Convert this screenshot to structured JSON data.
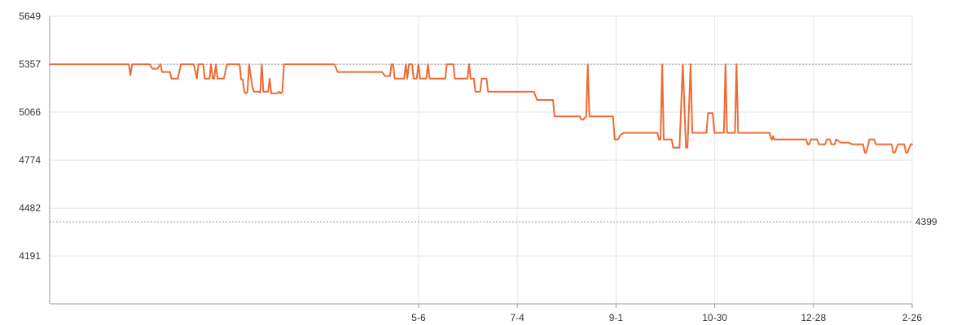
{
  "chart_data": {
    "type": "line",
    "title": "",
    "xlabel": "",
    "ylabel": "",
    "x_ticks": [
      "5-6",
      "7-4",
      "9-1",
      "10-30",
      "12-28",
      "2-26"
    ],
    "y_ticks": [
      "5649",
      "5357",
      "5066",
      "4774",
      "4482",
      "4191"
    ],
    "ylim": [
      3900,
      5649
    ],
    "grid": true,
    "reference_lines": [
      {
        "value": 5357,
        "label": ""
      },
      {
        "value": 4399,
        "label": "4399"
      }
    ],
    "series": [
      {
        "color": "#ee6a33",
        "points": [
          [
            0,
            5357
          ],
          [
            47.6,
            5357
          ],
          [
            48.6,
            5290
          ],
          [
            49.6,
            5357
          ],
          [
            60,
            5357
          ],
          [
            61.9,
            5330
          ],
          [
            64.8,
            5330
          ],
          [
            66.7,
            5357
          ],
          [
            67.6,
            5310
          ],
          [
            72.4,
            5310
          ],
          [
            73.3,
            5270
          ],
          [
            77.1,
            5270
          ],
          [
            79,
            5357
          ],
          [
            86.7,
            5357
          ],
          [
            88.6,
            5270
          ],
          [
            89.5,
            5357
          ],
          [
            92.4,
            5357
          ],
          [
            93.3,
            5270
          ],
          [
            96.2,
            5270
          ],
          [
            97.1,
            5357
          ],
          [
            98.1,
            5270
          ],
          [
            99,
            5270
          ],
          [
            100,
            5357
          ],
          [
            101,
            5270
          ],
          [
            104.8,
            5270
          ],
          [
            106.7,
            5357
          ],
          [
            114.3,
            5357
          ],
          [
            115.2,
            5265
          ],
          [
            116.2,
            5265
          ],
          [
            117.1,
            5190
          ],
          [
            118.1,
            5180
          ],
          [
            119,
            5190
          ],
          [
            120,
            5357
          ],
          [
            121.9,
            5220
          ],
          [
            122.9,
            5190
          ],
          [
            125.7,
            5190
          ],
          [
            126.7,
            5185
          ],
          [
            127.6,
            5357
          ],
          [
            128.6,
            5190
          ],
          [
            131.4,
            5190
          ],
          [
            132.4,
            5270
          ],
          [
            133.3,
            5180
          ],
          [
            137.1,
            5180
          ],
          [
            138.1,
            5190
          ],
          [
            139,
            5180
          ],
          [
            140,
            5190
          ],
          [
            141,
            5357
          ],
          [
            171.4,
            5357
          ],
          [
            173.3,
            5310
          ],
          [
            200,
            5310
          ],
          [
            201.9,
            5285
          ],
          [
            204.8,
            5285
          ],
          [
            205.7,
            5357
          ],
          [
            206.7,
            5357
          ],
          [
            207.6,
            5270
          ],
          [
            213.3,
            5270
          ],
          [
            214.3,
            5357
          ],
          [
            215.2,
            5270
          ],
          [
            216.2,
            5357
          ],
          [
            218.1,
            5357
          ],
          [
            219,
            5270
          ],
          [
            220.9,
            5270
          ],
          [
            221.9,
            5357
          ],
          [
            222.9,
            5270
          ],
          [
            226.7,
            5270
          ],
          [
            227.6,
            5357
          ],
          [
            228.6,
            5270
          ],
          [
            238.1,
            5270
          ],
          [
            239,
            5357
          ],
          [
            242.9,
            5357
          ],
          [
            243.8,
            5270
          ],
          [
            251.4,
            5270
          ],
          [
            252.4,
            5357
          ],
          [
            253.3,
            5270
          ],
          [
            255.2,
            5270
          ],
          [
            256.2,
            5190
          ],
          [
            259,
            5190
          ],
          [
            260,
            5270
          ],
          [
            262.9,
            5270
          ],
          [
            263.8,
            5190
          ],
          [
            291.4,
            5190
          ],
          [
            293.3,
            5140
          ],
          [
            302.9,
            5140
          ],
          [
            303.8,
            5040
          ],
          [
            319,
            5040
          ],
          [
            319,
            5040
          ],
          [
            320,
            5020
          ],
          [
            321,
            5020
          ],
          [
            322.9,
            5040
          ],
          [
            323.8,
            5357
          ],
          [
            324.8,
            5040
          ],
          [
            330.5,
            5040
          ],
          [
            339,
            5040
          ],
          [
            340,
            4900
          ],
          [
            340,
            4900
          ],
          [
            341.9,
            4900
          ],
          [
            343.8,
            4930
          ],
          [
            345.7,
            4940
          ],
          [
            346.7,
            4940
          ],
          [
            365.7,
            4940
          ],
          [
            366.7,
            4900
          ],
          [
            367.6,
            4900
          ],
          [
            368.6,
            5357
          ],
          [
            369.5,
            4900
          ],
          [
            374.3,
            4900
          ],
          [
            375.2,
            4850
          ],
          [
            379,
            4850
          ],
          [
            381,
            5357
          ],
          [
            382.9,
            4850
          ],
          [
            383.8,
            4850
          ],
          [
            385.7,
            5357
          ],
          [
            386.7,
            4940
          ],
          [
            395.2,
            4940
          ],
          [
            396.2,
            5060
          ],
          [
            399,
            5060
          ],
          [
            400,
            4940
          ],
          [
            405.7,
            4940
          ],
          [
            406.7,
            5357
          ],
          [
            407.6,
            4940
          ],
          [
            412.4,
            4940
          ],
          [
            413.3,
            5357
          ],
          [
            414.3,
            4940
          ],
          [
            433.3,
            4940
          ],
          [
            434.3,
            4900
          ],
          [
            434.9,
            4900
          ],
          [
            435.2,
            4920
          ],
          [
            435.2,
            4920
          ],
          [
            436.2,
            4900
          ],
          [
            455.2,
            4900
          ],
          [
            456.2,
            4870
          ],
          [
            457.1,
            4870
          ],
          [
            458.1,
            4900
          ],
          [
            460,
            4900
          ],
          [
            460,
            4900
          ],
          [
            461.9,
            4900
          ],
          [
            462.9,
            4870
          ],
          [
            466.7,
            4870
          ],
          [
            467.6,
            4900
          ],
          [
            467.6,
            4900
          ],
          [
            469.5,
            4900
          ],
          [
            470.5,
            4870
          ],
          [
            472.4,
            4870
          ],
          [
            473.3,
            4900
          ],
          [
            473.3,
            4900
          ],
          [
            473.3,
            4900
          ],
          [
            476.2,
            4880
          ],
          [
            481,
            4880
          ],
          [
            482.9,
            4870
          ],
          [
            489.5,
            4870
          ],
          [
            490.5,
            4820
          ],
          [
            491.4,
            4820
          ],
          [
            493.3,
            4900
          ],
          [
            496.2,
            4900
          ],
          [
            497.1,
            4870
          ],
          [
            500,
            4870
          ],
          [
            506.7,
            4870
          ],
          [
            507.6,
            4820
          ],
          [
            508.6,
            4820
          ],
          [
            510.5,
            4870
          ],
          [
            514.3,
            4870
          ],
          [
            515.2,
            4820
          ],
          [
            516.2,
            4820
          ],
          [
            518.1,
            4870
          ],
          [
            519,
            4870
          ]
        ]
      }
    ]
  }
}
